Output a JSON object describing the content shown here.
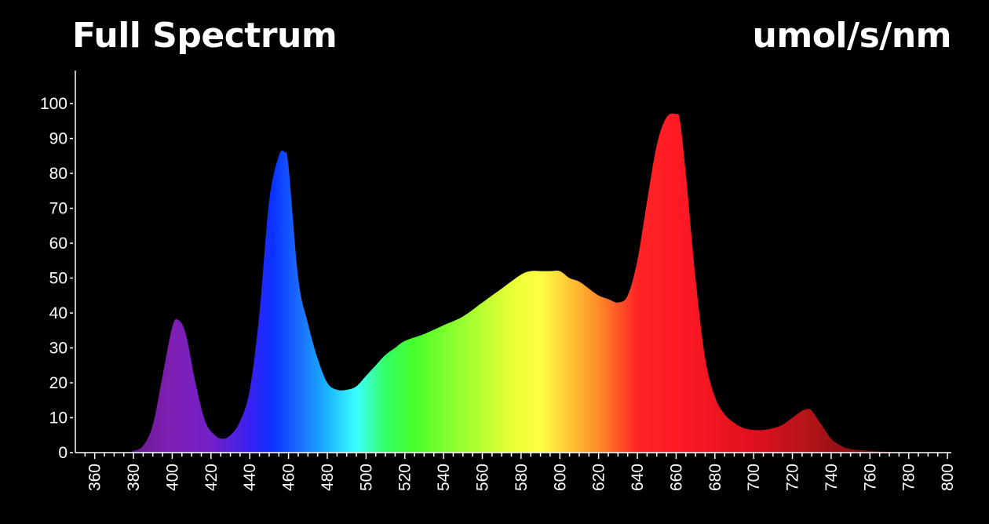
{
  "chart_data": {
    "type": "area",
    "title": "Full Spectrum",
    "unit_label": "umol/s/nm",
    "xlabel": "",
    "ylabel": "",
    "xlim": [
      350,
      802
    ],
    "ylim": [
      0,
      100
    ],
    "x_ticks": [
      360,
      380,
      400,
      420,
      440,
      460,
      480,
      500,
      520,
      540,
      560,
      580,
      600,
      620,
      640,
      660,
      680,
      700,
      720,
      740,
      760,
      780,
      800
    ],
    "y_ticks": [
      0,
      10,
      20,
      30,
      40,
      50,
      60,
      70,
      80,
      90,
      100
    ],
    "grid": false,
    "series": [
      {
        "x": [
          350,
          375,
          380,
          385,
          390,
          395,
          400,
          403,
          407,
          412,
          417,
          422,
          426,
          430,
          435,
          440,
          445,
          450,
          455,
          458,
          460,
          465,
          470,
          475,
          480,
          485,
          490,
          495,
          500,
          505,
          510,
          515,
          520,
          530,
          540,
          550,
          560,
          570,
          580,
          585,
          590,
          595,
          600,
          605,
          610,
          615,
          620,
          625,
          630,
          635,
          640,
          645,
          650,
          655,
          660,
          662,
          665,
          670,
          675,
          680,
          685,
          690,
          695,
          700,
          705,
          710,
          715,
          720,
          725,
          728,
          730,
          735,
          740,
          745,
          750,
          760,
          770,
          780,
          790,
          802
        ],
        "values": [
          0,
          0,
          0.5,
          2,
          8,
          22,
          36,
          38,
          34,
          20,
          9,
          5,
          4,
          5,
          9,
          18,
          40,
          72,
          85,
          86,
          82,
          50,
          37,
          27,
          20,
          18,
          18,
          19,
          22,
          25,
          28,
          30,
          32,
          34,
          36.5,
          39,
          43,
          47,
          51,
          52,
          52,
          52,
          52,
          50,
          49,
          47,
          45,
          44,
          43,
          45,
          55,
          72,
          88,
          96,
          97,
          95,
          80,
          50,
          27,
          16,
          11,
          8.5,
          7,
          6.5,
          6.5,
          7,
          8,
          10,
          12,
          12.5,
          12,
          8,
          4,
          2,
          1,
          0.5,
          0.2,
          0.1,
          0,
          0
        ]
      }
    ],
    "colors": {
      "gradient_stops": [
        {
          "offset_nm": 380,
          "color": "#6a1a90"
        },
        {
          "offset_nm": 400,
          "color": "#7f1fb4"
        },
        {
          "offset_nm": 420,
          "color": "#7320c8"
        },
        {
          "offset_nm": 440,
          "color": "#3a20f0"
        },
        {
          "offset_nm": 452,
          "color": "#0a32ff"
        },
        {
          "offset_nm": 465,
          "color": "#1a6aff"
        },
        {
          "offset_nm": 480,
          "color": "#1ab4ff"
        },
        {
          "offset_nm": 495,
          "color": "#3cffff"
        },
        {
          "offset_nm": 510,
          "color": "#34ff66"
        },
        {
          "offset_nm": 525,
          "color": "#48ff2a"
        },
        {
          "offset_nm": 550,
          "color": "#9aff30"
        },
        {
          "offset_nm": 575,
          "color": "#e8ff34"
        },
        {
          "offset_nm": 590,
          "color": "#ffff44"
        },
        {
          "offset_nm": 605,
          "color": "#ffc632"
        },
        {
          "offset_nm": 620,
          "color": "#ff8a28"
        },
        {
          "offset_nm": 640,
          "color": "#ff2424"
        },
        {
          "offset_nm": 660,
          "color": "#ff1a24"
        },
        {
          "offset_nm": 700,
          "color": "#e0101e"
        },
        {
          "offset_nm": 730,
          "color": "#b01418"
        },
        {
          "offset_nm": 760,
          "color": "#7a0e10"
        }
      ]
    }
  }
}
